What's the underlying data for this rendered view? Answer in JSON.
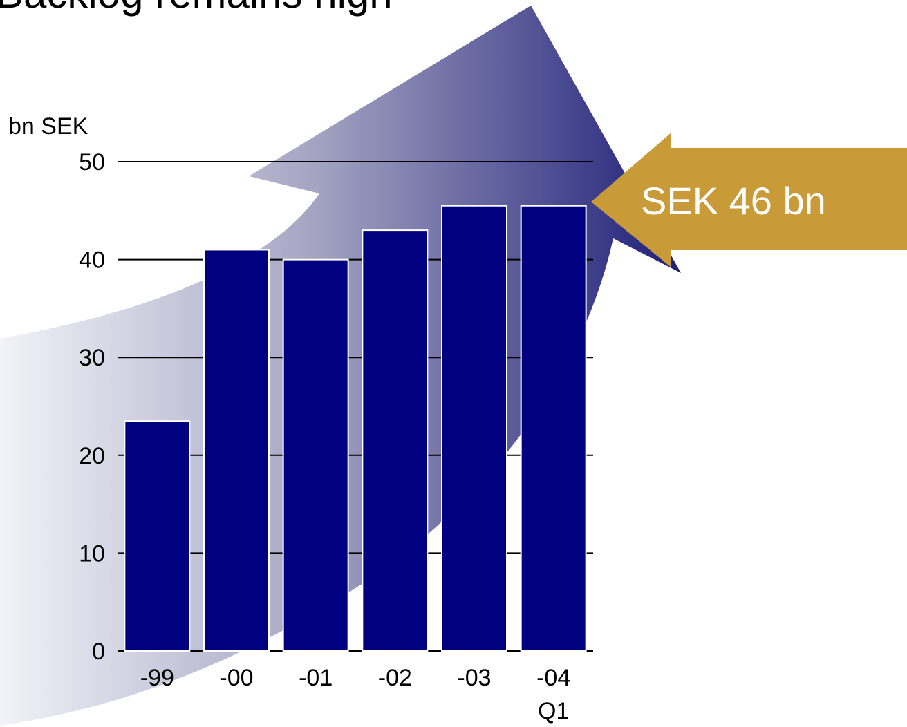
{
  "title": "Backlog remains high",
  "chart_data": {
    "type": "bar",
    "categories": [
      "-99",
      "-00",
      "-01",
      "-02",
      "-03",
      "-04"
    ],
    "category_sublabels": [
      "",
      "",
      "",
      "",
      "",
      "Q1"
    ],
    "values": [
      23.5,
      41,
      40,
      43,
      45.5,
      45.5
    ],
    "ylabel": "bn SEK",
    "ylim": [
      0,
      50
    ],
    "yticks": [
      0,
      10,
      20,
      30,
      40,
      50
    ],
    "grid": true,
    "bar_color": "#000080",
    "annotation": "SEK 46 bn",
    "annotation_color": "#C99A38",
    "background_arrow_colors": [
      "#F2F2F8",
      "#1E1E78"
    ]
  }
}
